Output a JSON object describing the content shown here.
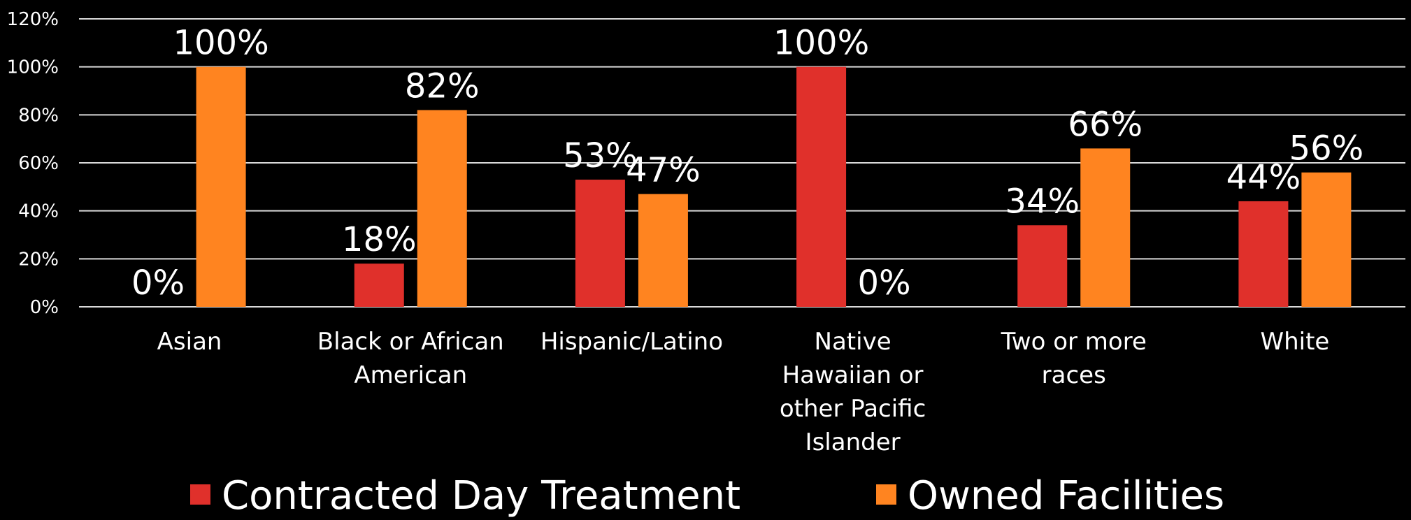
{
  "chart_data": {
    "type": "bar",
    "categories": [
      [
        "Asian"
      ],
      [
        "Black or African",
        "American"
      ],
      [
        "Hispanic/Latino"
      ],
      [
        "Native",
        "Hawaiian or",
        "other Pacific",
        "Islander"
      ],
      [
        "Two or more",
        "races"
      ],
      [
        "White"
      ]
    ],
    "series": [
      {
        "name": "Contracted Day Treatment",
        "color": "#e0302b",
        "values": [
          0,
          18,
          53,
          100,
          34,
          44
        ],
        "labels": [
          "0%",
          "18%",
          "53%",
          "100%",
          "34%",
          "44%"
        ]
      },
      {
        "name": "Owned Facilities",
        "color": "#ff8420",
        "values": [
          100,
          82,
          47,
          0,
          66,
          56
        ],
        "labels": [
          "100%",
          "82%",
          "47%",
          "0%",
          "66%",
          "56%"
        ]
      }
    ],
    "ylim": [
      0,
      120
    ],
    "yticks": [
      0,
      20,
      40,
      60,
      80,
      100,
      120
    ],
    "ytick_labels": [
      "0%",
      "20%",
      "40%",
      "60%",
      "80%",
      "100%",
      "120%"
    ],
    "grid": true,
    "legend_position": "bottom",
    "title": "",
    "xlabel": "",
    "ylabel": ""
  }
}
